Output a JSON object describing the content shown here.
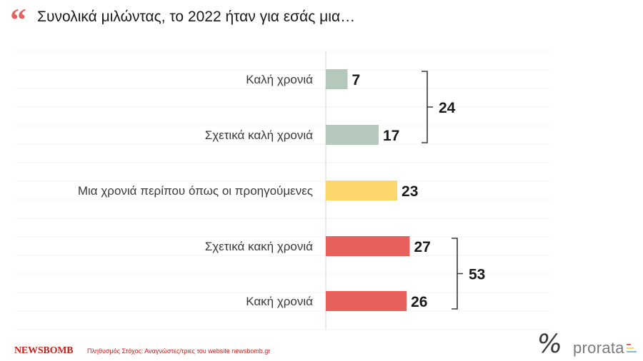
{
  "title": "Συνολικά μιλώντας, το 2022 ήταν για εσάς μια…",
  "footer": {
    "logo": "NEWSBOMB",
    "note": "Πληθυσμός Στόχος: Αναγνώστες/τριες του website newsbomb.gr",
    "brand": "prorata",
    "icon": "percent-icon"
  },
  "colors": {
    "positive": "#b5c8bc",
    "neutral": "#fcd86c",
    "negative": "#e8605c"
  },
  "chart_data": {
    "type": "bar",
    "orientation": "horizontal",
    "categories": [
      "Καλή χρονιά",
      "Σχετικά καλή χρονιά",
      "Μια χρονιά περίπου όπως οι προηγούμενες",
      "Σχετικά κακή χρονιά",
      "Κακή χρονιά"
    ],
    "values": [
      7,
      17,
      23,
      27,
      26
    ],
    "colors": [
      "#b5c8bc",
      "#b5c8bc",
      "#fcd86c",
      "#e8605c",
      "#e8605c"
    ],
    "groups": [
      {
        "from": 0,
        "to": 1,
        "total": 24
      },
      {
        "from": 3,
        "to": 4,
        "total": 53
      }
    ],
    "xlim": [
      0,
      40
    ]
  }
}
